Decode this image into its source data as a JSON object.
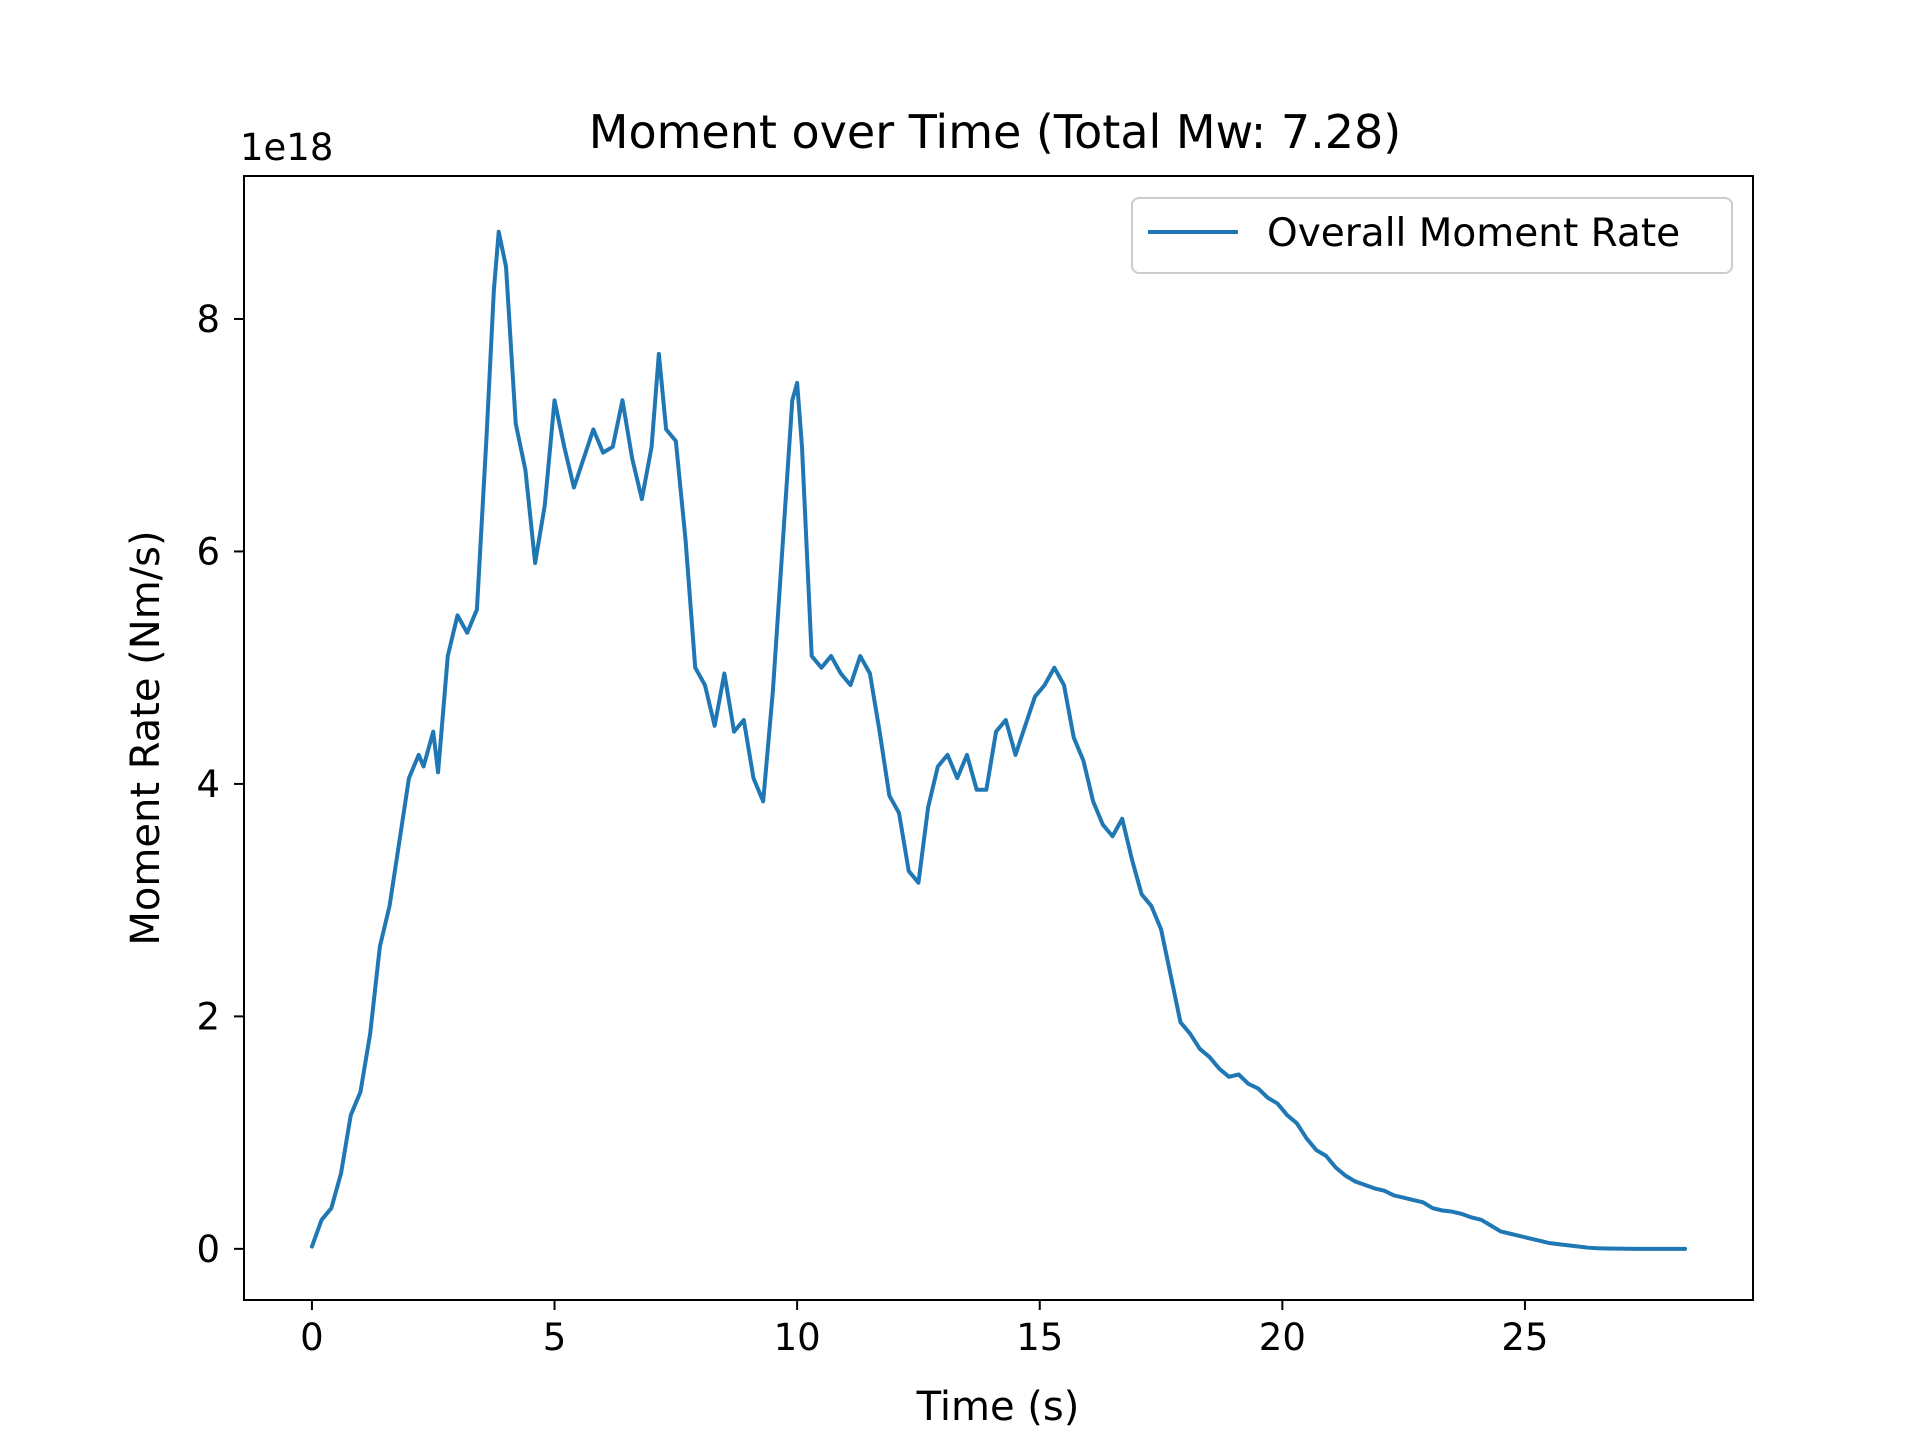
{
  "chart_data": {
    "type": "line",
    "title": "Moment over Time (Total Mw: 7.28)",
    "xlabel": "Time (s)",
    "ylabel": "Moment Rate (Nm/s)",
    "y_scale_label": "1e18",
    "xlim": [
      -1.4,
      29.7
    ],
    "ylim": [
      -0.44,
      9.23
    ],
    "x_ticks": [
      0,
      5,
      10,
      15,
      20,
      25
    ],
    "x_tick_labels": [
      "0",
      "5",
      "10",
      "15",
      "20",
      "25"
    ],
    "y_ticks": [
      0,
      2,
      4,
      6,
      8
    ],
    "y_tick_labels": [
      "0",
      "2",
      "4",
      "6",
      "8"
    ],
    "grid": false,
    "legend_position": "top-right",
    "series": [
      {
        "name": "Overall Moment Rate",
        "color": "#1f77b4",
        "x": [
          0.0,
          0.2,
          0.4,
          0.6,
          0.8,
          1.0,
          1.2,
          1.4,
          1.6,
          1.8,
          2.0,
          2.2,
          2.3,
          2.5,
          2.6,
          2.8,
          3.0,
          3.2,
          3.4,
          3.6,
          3.75,
          3.85,
          4.0,
          4.2,
          4.4,
          4.6,
          4.8,
          5.0,
          5.2,
          5.4,
          5.6,
          5.8,
          6.0,
          6.2,
          6.4,
          6.6,
          6.8,
          7.0,
          7.15,
          7.3,
          7.5,
          7.7,
          7.9,
          8.1,
          8.3,
          8.5,
          8.7,
          8.9,
          9.1,
          9.3,
          9.5,
          9.7,
          9.9,
          10.0,
          10.1,
          10.3,
          10.5,
          10.7,
          10.9,
          11.1,
          11.3,
          11.5,
          11.7,
          11.9,
          12.1,
          12.3,
          12.5,
          12.7,
          12.9,
          13.1,
          13.3,
          13.5,
          13.7,
          13.9,
          14.1,
          14.3,
          14.5,
          14.7,
          14.9,
          15.1,
          15.3,
          15.5,
          15.7,
          15.9,
          16.1,
          16.3,
          16.5,
          16.7,
          16.9,
          17.1,
          17.3,
          17.5,
          17.7,
          17.9,
          18.1,
          18.3,
          18.5,
          18.7,
          18.9,
          19.1,
          19.3,
          19.5,
          19.7,
          19.9,
          20.1,
          20.3,
          20.5,
          20.7,
          20.9,
          21.1,
          21.3,
          21.5,
          21.7,
          21.9,
          22.1,
          22.3,
          22.5,
          22.7,
          22.9,
          23.1,
          23.3,
          23.5,
          23.7,
          23.9,
          24.1,
          24.3,
          24.5,
          24.7,
          24.9,
          25.1,
          25.3,
          25.5,
          25.7,
          25.9,
          26.1,
          26.3,
          26.5,
          26.7,
          26.9,
          27.1,
          27.3,
          27.5,
          27.7,
          27.9,
          28.1,
          28.3
        ],
        "y": [
          0.02,
          0.25,
          0.35,
          0.65,
          1.15,
          1.35,
          1.85,
          2.6,
          2.95,
          3.5,
          4.05,
          4.25,
          4.15,
          4.45,
          4.1,
          5.1,
          5.45,
          5.3,
          5.5,
          7.0,
          8.25,
          8.75,
          8.45,
          7.1,
          6.7,
          5.9,
          6.4,
          7.3,
          6.9,
          6.55,
          6.8,
          7.05,
          6.85,
          6.9,
          7.3,
          6.8,
          6.45,
          6.9,
          7.7,
          7.05,
          6.95,
          6.1,
          5.0,
          4.85,
          4.5,
          4.95,
          4.45,
          4.55,
          4.05,
          3.85,
          4.8,
          6.05,
          7.3,
          7.45,
          6.9,
          5.1,
          5.0,
          5.1,
          4.95,
          4.85,
          5.1,
          4.95,
          4.45,
          3.9,
          3.75,
          3.25,
          3.15,
          3.8,
          4.15,
          4.25,
          4.05,
          4.25,
          3.95,
          3.95,
          4.45,
          4.55,
          4.25,
          4.5,
          4.75,
          4.85,
          5.0,
          4.85,
          4.4,
          4.2,
          3.85,
          3.65,
          3.55,
          3.7,
          3.35,
          3.05,
          2.95,
          2.75,
          2.35,
          1.95,
          1.85,
          1.72,
          1.65,
          1.55,
          1.48,
          1.5,
          1.42,
          1.38,
          1.3,
          1.25,
          1.15,
          1.08,
          0.95,
          0.85,
          0.8,
          0.7,
          0.63,
          0.58,
          0.55,
          0.52,
          0.5,
          0.46,
          0.44,
          0.42,
          0.4,
          0.35,
          0.33,
          0.32,
          0.3,
          0.27,
          0.25,
          0.2,
          0.15,
          0.13,
          0.11,
          0.09,
          0.07,
          0.05,
          0.04,
          0.03,
          0.02,
          0.01,
          0.005,
          0.003,
          0.002,
          0.001,
          0.0,
          0.0,
          0.0,
          0.0,
          0.0,
          0.0
        ]
      }
    ]
  }
}
